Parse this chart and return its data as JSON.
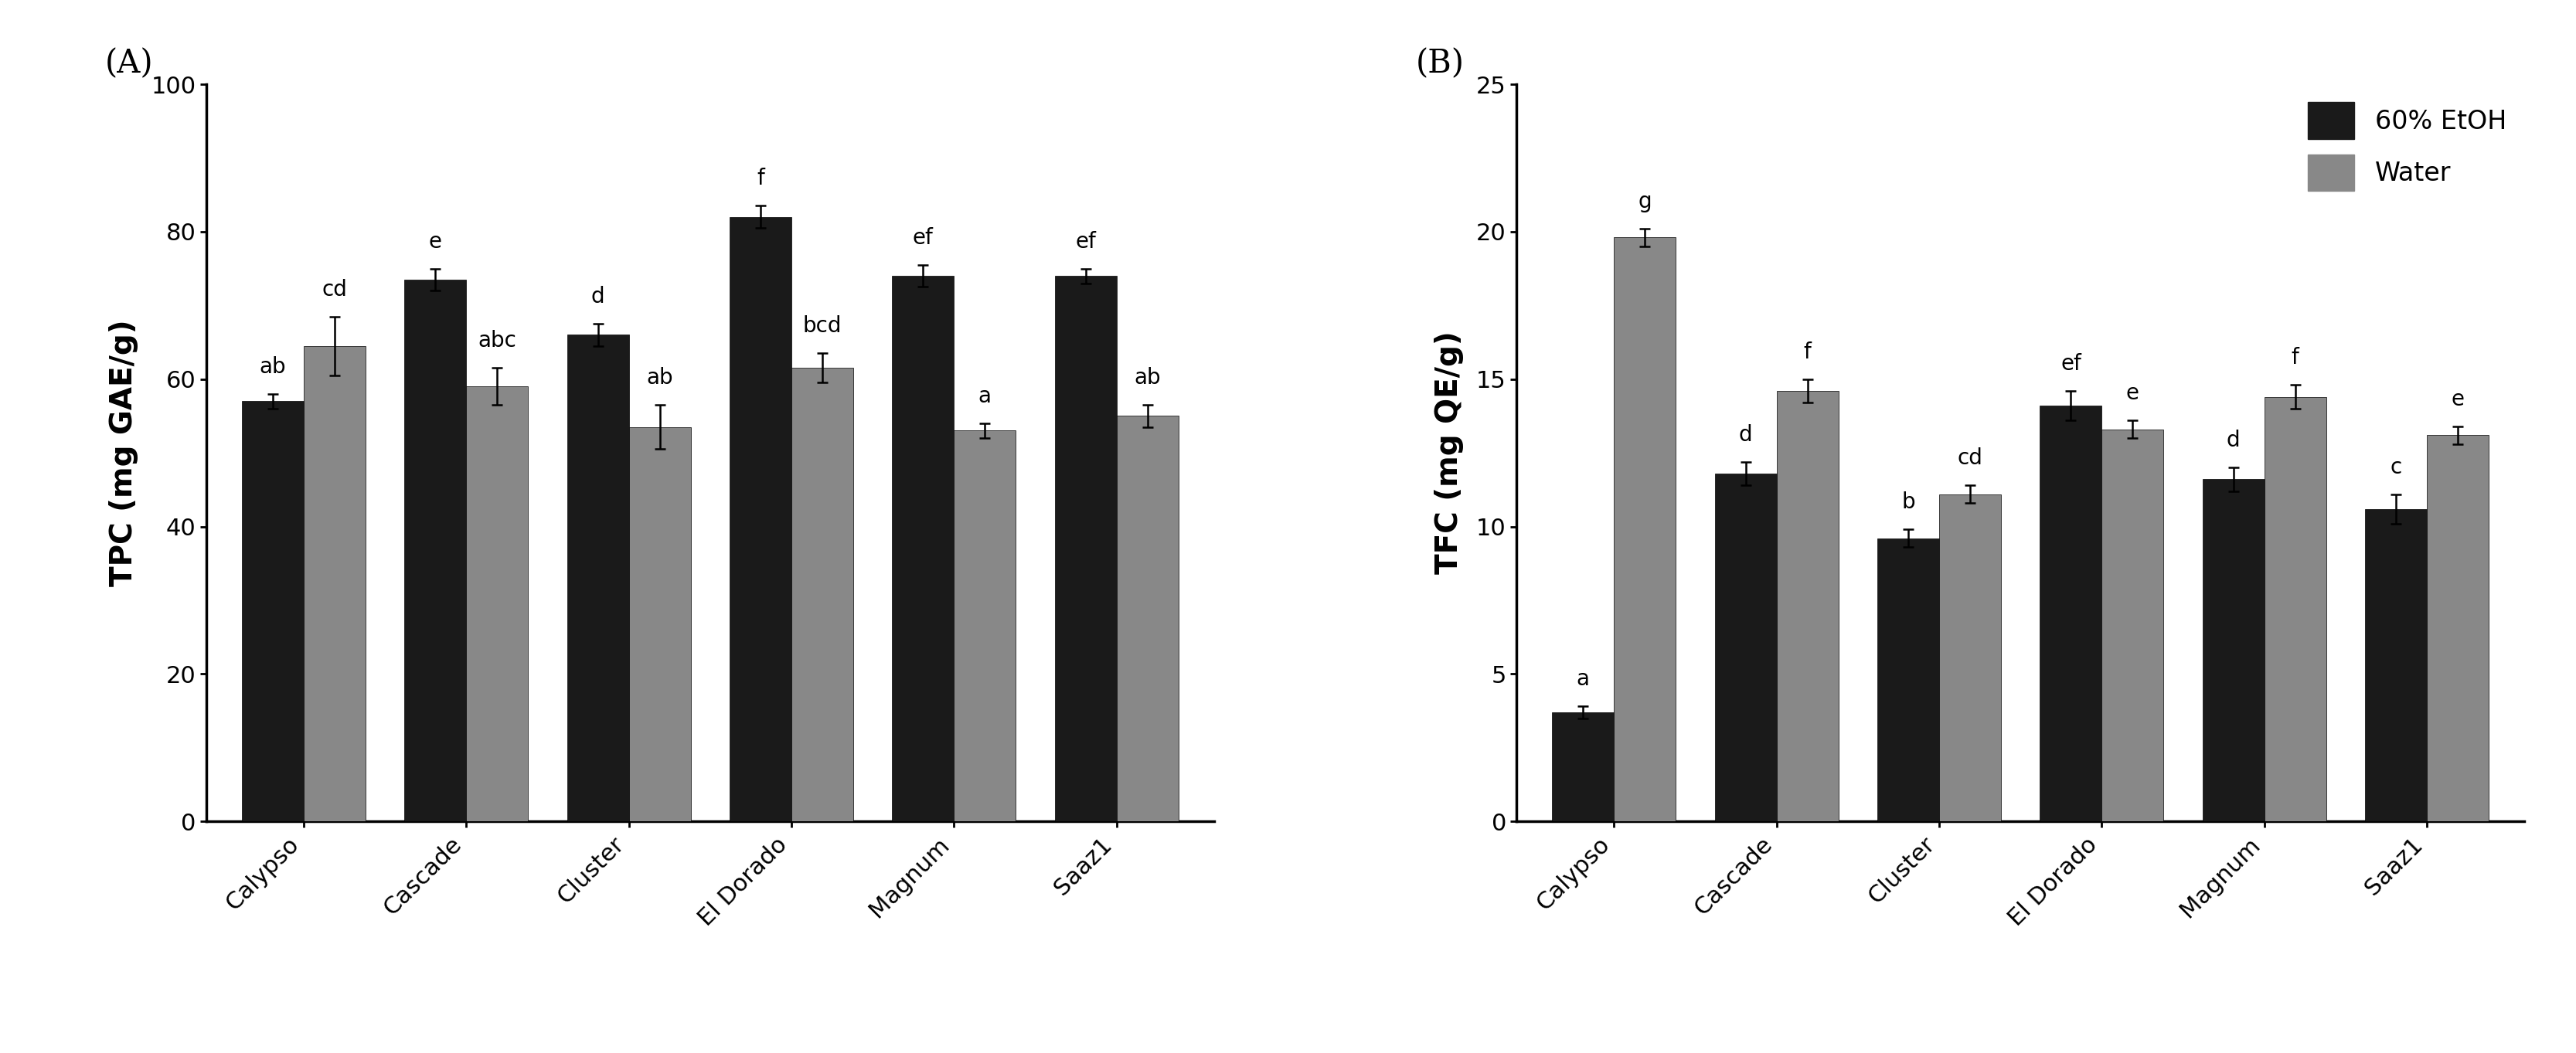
{
  "categories": [
    "Calypso",
    "Cascade",
    "Cluster",
    "El Dorado",
    "Magnum",
    "Saaz1"
  ],
  "tpc_etoh": [
    57.0,
    73.5,
    66.0,
    82.0,
    74.0,
    74.0
  ],
  "tpc_water": [
    64.5,
    59.0,
    53.5,
    61.5,
    53.0,
    55.0
  ],
  "tpc_etoh_err": [
    1.0,
    1.5,
    1.5,
    1.5,
    1.5,
    1.0
  ],
  "tpc_water_err": [
    4.0,
    2.5,
    3.0,
    2.0,
    1.0,
    1.5
  ],
  "tpc_etoh_labels": [
    "ab",
    "e",
    "d",
    "f",
    "ef",
    "ef"
  ],
  "tpc_water_labels": [
    "cd",
    "abc",
    "ab",
    "bcd",
    "a",
    "ab"
  ],
  "tpc_ylabel": "TPC (mg GAE/g)",
  "tpc_ylim": [
    0,
    100
  ],
  "tpc_yticks": [
    0,
    20,
    40,
    60,
    80,
    100
  ],
  "tfc_etoh": [
    3.7,
    11.8,
    9.6,
    14.1,
    11.6,
    10.6
  ],
  "tfc_water": [
    19.8,
    14.6,
    11.1,
    13.3,
    14.4,
    13.1
  ],
  "tfc_etoh_err": [
    0.2,
    0.4,
    0.3,
    0.5,
    0.4,
    0.5
  ],
  "tfc_water_err": [
    0.3,
    0.4,
    0.3,
    0.3,
    0.4,
    0.3
  ],
  "tfc_etoh_labels": [
    "a",
    "d",
    "b",
    "ef",
    "d",
    "c"
  ],
  "tfc_water_labels": [
    "g",
    "f",
    "cd",
    "e",
    "f",
    "e"
  ],
  "tfc_ylabel": "TFC (mg QE/g)",
  "tfc_ylim": [
    0,
    25
  ],
  "tfc_yticks": [
    0,
    5,
    10,
    15,
    20,
    25
  ],
  "color_etoh": "#1a1a1a",
  "color_water": "#888888",
  "legend_labels": [
    "60% EtOH",
    "Water"
  ],
  "panel_A_label": "(A)",
  "panel_B_label": "(B)",
  "bar_width": 0.38,
  "tick_fontsize": 22,
  "annot_fontsize": 20,
  "panel_label_fontsize": 30,
  "legend_fontsize": 24,
  "ylabel_fontsize": 28,
  "xlabel_rotation": 45
}
